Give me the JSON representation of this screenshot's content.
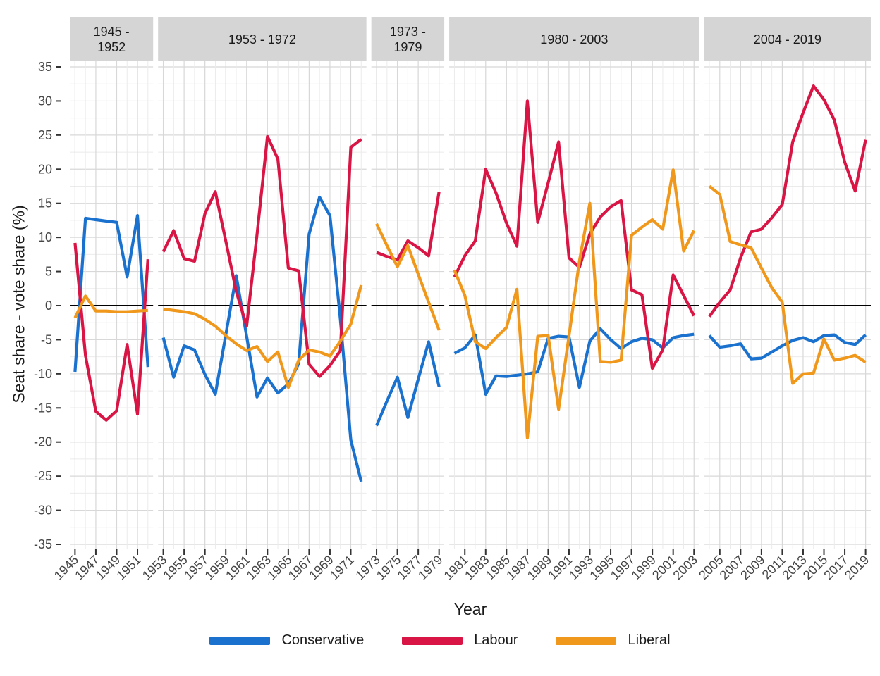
{
  "colors": {
    "strip_bg": "#D5D5D5",
    "strip_text": "#1A1A1A",
    "grid_major": "#D8D8D8",
    "grid_minor": "#EBEBEB",
    "panel_bg": "#FFFFFF",
    "zero_line": "#000000",
    "tick": "#333333",
    "axis_text": "#454545",
    "title_text": "#1A1A1A"
  },
  "chart_data": {
    "type": "line",
    "title": "",
    "xlabel": "Year",
    "ylabel": "Seat share - vote share (%)",
    "ylim": [
      -35,
      35
    ],
    "y_ticks": [
      35,
      30,
      25,
      20,
      15,
      10,
      5,
      0,
      -5,
      -10,
      -15,
      -20,
      -25,
      -30,
      -35
    ],
    "grid": "major+minor",
    "zero_line": true,
    "legend_position": "bottom",
    "series_meta": [
      {
        "name": "Conservative",
        "color": "#1B72CE"
      },
      {
        "name": "Labour",
        "color": "#D81545"
      },
      {
        "name": "Liberal",
        "color": "#F0981C"
      }
    ],
    "facets": [
      {
        "label": "1945 -\n1952",
        "years": [
          1945,
          1946,
          1947,
          1948,
          1949,
          1950,
          1951,
          1952
        ],
        "ticks": [
          1945,
          1947,
          1949,
          1951
        ],
        "series": {
          "Conservative": [
            -9.7,
            12.8,
            12.6,
            12.4,
            12.2,
            4.2,
            13.2,
            -9.0
          ],
          "Labour": [
            9.2,
            -7.3,
            -15.5,
            -16.8,
            -15.4,
            -5.7,
            -15.9,
            6.8
          ],
          "Liberal": [
            -1.8,
            1.4,
            -0.8,
            -0.8,
            -0.9,
            -0.9,
            -0.8,
            -0.7
          ]
        }
      },
      {
        "label": "1953 - 1972",
        "years": [
          1953,
          1954,
          1955,
          1956,
          1957,
          1958,
          1959,
          1960,
          1961,
          1962,
          1963,
          1964,
          1965,
          1966,
          1967,
          1968,
          1969,
          1970,
          1971,
          1972
        ],
        "ticks": [
          1953,
          1955,
          1957,
          1959,
          1961,
          1963,
          1965,
          1967,
          1969,
          1971
        ],
        "series": {
          "Conservative": [
            -4.7,
            -10.5,
            -5.9,
            -6.5,
            -10.1,
            -13.0,
            -4.3,
            4.4,
            -4.5,
            -13.4,
            -10.6,
            -12.8,
            -11.5,
            -8.5,
            10.5,
            15.9,
            13.2,
            -2.0,
            -19.7,
            -25.8
          ],
          "Labour": [
            7.9,
            11.0,
            6.9,
            6.5,
            13.5,
            16.7,
            9.5,
            2.1,
            -3.0,
            10.4,
            24.8,
            21.5,
            5.5,
            5.1,
            -8.6,
            -10.4,
            -8.8,
            -6.6,
            23.2,
            24.4
          ],
          "Liberal": [
            -0.5,
            -0.7,
            -0.9,
            -1.2,
            -2.0,
            -3.0,
            -4.4,
            -5.6,
            -6.6,
            -6.0,
            -8.2,
            -6.8,
            -12.0,
            -8.0,
            -6.5,
            -6.8,
            -7.4,
            -5.2,
            -2.7,
            3.0
          ]
        }
      },
      {
        "label": "1973 -\n1979",
        "years": [
          1973,
          1974,
          1975,
          1976,
          1977,
          1978,
          1979
        ],
        "ticks": [
          1973,
          1975,
          1977,
          1979
        ],
        "series": {
          "Conservative": [
            -17.6,
            -14.0,
            -10.5,
            -16.4,
            -10.8,
            -5.3,
            -11.9
          ],
          "Labour": [
            7.8,
            7.2,
            6.7,
            9.5,
            8.5,
            7.3,
            16.7
          ],
          "Liberal": [
            12.0,
            8.8,
            5.7,
            8.8,
            4.6,
            0.5,
            -3.6
          ]
        }
      },
      {
        "label": "1980 - 2003",
        "years": [
          1980,
          1981,
          1982,
          1983,
          1984,
          1985,
          1986,
          1987,
          1988,
          1989,
          1990,
          1991,
          1992,
          1993,
          1994,
          1995,
          1996,
          1997,
          1998,
          1999,
          2000,
          2001,
          2002,
          2003
        ],
        "ticks": [
          1981,
          1983,
          1985,
          1987,
          1989,
          1991,
          1993,
          1995,
          1997,
          1999,
          2001,
          2003
        ],
        "series": {
          "Conservative": [
            -7.0,
            -6.2,
            -4.3,
            -13.0,
            -10.3,
            -10.4,
            -10.2,
            -10.0,
            -9.7,
            -4.8,
            -4.5,
            -4.6,
            -12.0,
            -5.2,
            -3.4,
            -5.0,
            -6.3,
            -5.3,
            -4.8,
            -5.0,
            -6.2,
            -4.7,
            -4.4,
            -4.2
          ],
          "Labour": [
            4.2,
            7.3,
            9.5,
            20.0,
            16.5,
            12.1,
            8.7,
            30.0,
            12.2,
            18.0,
            24.0,
            7.0,
            5.6,
            10.5,
            13.0,
            14.5,
            15.4,
            2.3,
            1.6,
            -9.2,
            -6.5,
            4.5,
            1.5,
            -1.5
          ],
          "Liberal": [
            5.2,
            1.5,
            -5.3,
            -6.3,
            -4.7,
            -3.2,
            2.4,
            -19.4,
            -4.5,
            -4.4,
            -15.2,
            -4.4,
            6.5,
            15.0,
            -8.2,
            -8.3,
            -8.0,
            10.3,
            11.5,
            12.6,
            11.2,
            19.9,
            8.0,
            11.0
          ]
        }
      },
      {
        "label": "2004 - 2019",
        "years": [
          2004,
          2005,
          2006,
          2007,
          2008,
          2009,
          2010,
          2011,
          2012,
          2013,
          2014,
          2015,
          2016,
          2017,
          2018,
          2019
        ],
        "ticks": [
          2005,
          2007,
          2009,
          2011,
          2013,
          2015,
          2017,
          2019
        ],
        "series": {
          "Conservative": [
            -4.4,
            -6.1,
            -5.9,
            -5.6,
            -7.8,
            -7.7,
            -6.8,
            -5.9,
            -5.1,
            -4.7,
            -5.3,
            -4.4,
            -4.3,
            -5.4,
            -5.7,
            -4.3
          ],
          "Labour": [
            -1.6,
            0.5,
            2.3,
            7.0,
            10.8,
            11.2,
            12.9,
            14.8,
            24.0,
            28.3,
            32.2,
            30.2,
            27.2,
            21.0,
            16.8,
            24.3
          ],
          "Liberal": [
            17.5,
            16.3,
            9.4,
            8.9,
            8.5,
            5.5,
            2.6,
            0.5,
            -11.4,
            -10.0,
            -9.9,
            -4.9,
            -8.0,
            -7.7,
            -7.3,
            -8.3
          ]
        }
      }
    ]
  }
}
